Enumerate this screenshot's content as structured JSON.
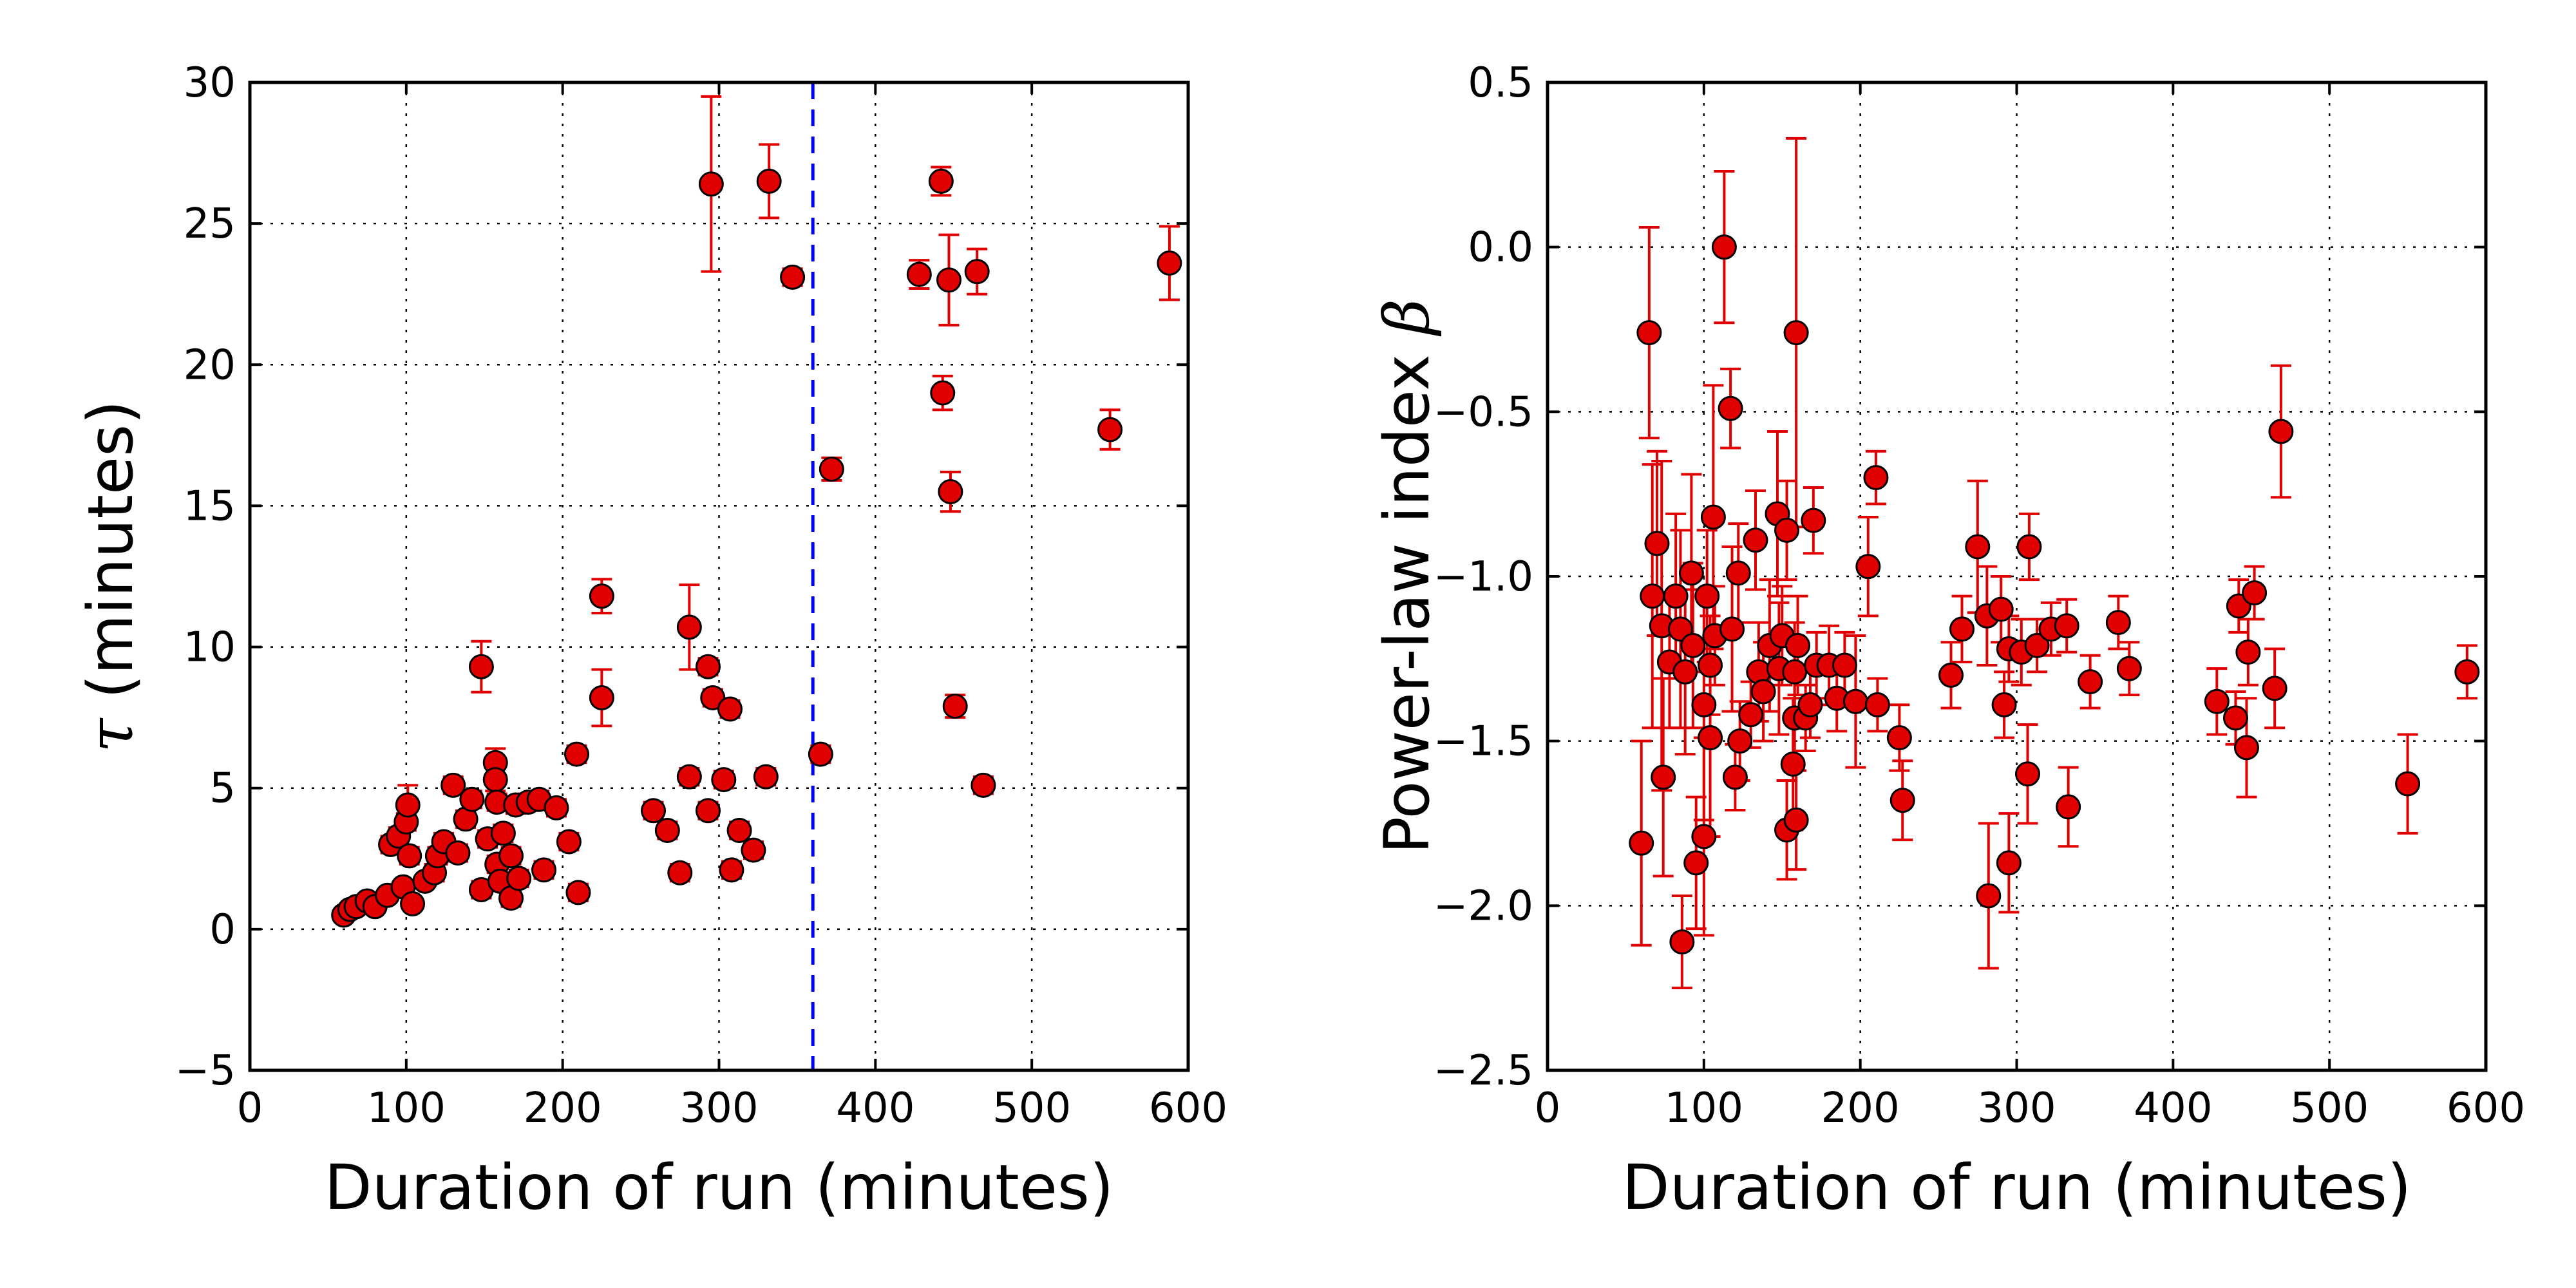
{
  "colors": {
    "marker": "#e00000",
    "errorbar": "#e00000",
    "vline": "#0000ff"
  },
  "chart_data": [
    {
      "type": "scatter",
      "title": "",
      "xlabel": "Duration of run (minutes)",
      "ylabel_symbol": "τ",
      "ylabel": " (minutes)",
      "xlim": [
        0,
        600
      ],
      "ylim": [
        -5,
        30
      ],
      "xticks": [
        0,
        100,
        200,
        300,
        400,
        500,
        600
      ],
      "yticks": [
        -5,
        0,
        5,
        10,
        15,
        20,
        25,
        30
      ],
      "ytick_labels": [
        "−5",
        "0",
        "5",
        "10",
        "15",
        "20",
        "25",
        "30"
      ],
      "grid": true,
      "vline": {
        "x": 360,
        "style": "dashed"
      },
      "points": [
        [
          60,
          0.5,
          0.15
        ],
        [
          64,
          0.7,
          0.2
        ],
        [
          68,
          0.8,
          0.2
        ],
        [
          75,
          1.0,
          0.2
        ],
        [
          80,
          0.8,
          0.2
        ],
        [
          88,
          1.2,
          0.2
        ],
        [
          90,
          3.0,
          0.3
        ],
        [
          95,
          3.3,
          0.3
        ],
        [
          98,
          1.5,
          0.2
        ],
        [
          100,
          3.8,
          0.3
        ],
        [
          101,
          4.4,
          0.7
        ],
        [
          102,
          2.6,
          0.3
        ],
        [
          104,
          0.9,
          0.2
        ],
        [
          112,
          1.7,
          0.2
        ],
        [
          118,
          2.0,
          0.3
        ],
        [
          120,
          2.6,
          0.3
        ],
        [
          124,
          3.1,
          0.3
        ],
        [
          130,
          5.1,
          0.3
        ],
        [
          133,
          2.7,
          0.3
        ],
        [
          138,
          3.9,
          0.3
        ],
        [
          142,
          4.6,
          0.3
        ],
        [
          148,
          9.3,
          0.9
        ],
        [
          148,
          1.4,
          0.3
        ],
        [
          152,
          3.2,
          0.3
        ],
        [
          157,
          5.9,
          0.5
        ],
        [
          157,
          5.3,
          0.4
        ],
        [
          158,
          4.5,
          0.3
        ],
        [
          158,
          2.3,
          0.3
        ],
        [
          160,
          1.7,
          0.3
        ],
        [
          162,
          3.4,
          0.3
        ],
        [
          167,
          2.6,
          0.3
        ],
        [
          167,
          1.1,
          0.3
        ],
        [
          170,
          4.4,
          0.3
        ],
        [
          172,
          1.8,
          0.3
        ],
        [
          178,
          4.5,
          0.3
        ],
        [
          185,
          4.6,
          0.3
        ],
        [
          188,
          2.1,
          0.3
        ],
        [
          196,
          4.3,
          0.3
        ],
        [
          204,
          3.1,
          0.3
        ],
        [
          209,
          6.2,
          0.3
        ],
        [
          210,
          1.3,
          0.3
        ],
        [
          225,
          11.8,
          0.6
        ],
        [
          225,
          8.2,
          1.0
        ],
        [
          258,
          4.2,
          0.3
        ],
        [
          267,
          3.5,
          0.3
        ],
        [
          275,
          2.0,
          0.3
        ],
        [
          281,
          10.7,
          1.5
        ],
        [
          281,
          5.4,
          0.3
        ],
        [
          293,
          9.3,
          0.3
        ],
        [
          293,
          4.2,
          0.3
        ],
        [
          295,
          26.4,
          3.1
        ],
        [
          296,
          8.2,
          0.3
        ],
        [
          303,
          5.3,
          0.3
        ],
        [
          307,
          7.8,
          0.3
        ],
        [
          308,
          2.1,
          0.3
        ],
        [
          313,
          3.5,
          0.3
        ],
        [
          322,
          2.8,
          0.3
        ],
        [
          330,
          5.4,
          0.3
        ],
        [
          332,
          26.5,
          1.3
        ],
        [
          347,
          23.1,
          0.3
        ],
        [
          365,
          6.2,
          0.3
        ],
        [
          372,
          16.3,
          0.4
        ],
        [
          428,
          23.2,
          0.5
        ],
        [
          442,
          26.5,
          0.5
        ],
        [
          443,
          19.0,
          0.6
        ],
        [
          447,
          23.0,
          1.6
        ],
        [
          448,
          15.5,
          0.7
        ],
        [
          451,
          7.9,
          0.4
        ],
        [
          465,
          23.3,
          0.8
        ],
        [
          469,
          5.1,
          0.3
        ],
        [
          550,
          17.7,
          0.7
        ],
        [
          588,
          23.6,
          1.3
        ]
      ]
    },
    {
      "type": "scatter",
      "title": "",
      "xlabel": "Duration of run (minutes)",
      "ylabel": "Power-law index ",
      "ylabel_symbol": "β",
      "xlim": [
        0,
        600
      ],
      "ylim": [
        -2.5,
        0.5
      ],
      "xticks": [
        0,
        100,
        200,
        300,
        400,
        500,
        600
      ],
      "yticks": [
        -2.5,
        -2.0,
        -1.5,
        -1.0,
        -0.5,
        0.0,
        0.5
      ],
      "ytick_labels": [
        "−2.5",
        "−2.0",
        "−1.5",
        "−1.0",
        "−0.5",
        "0.0",
        "0.5"
      ],
      "grid": true,
      "points": [
        [
          60,
          -1.81,
          0.31
        ],
        [
          65,
          -0.26,
          0.32
        ],
        [
          67,
          -1.06,
          0.4
        ],
        [
          70,
          -0.9,
          0.28
        ],
        [
          73,
          -1.15,
          0.5
        ],
        [
          74,
          -1.61,
          0.3
        ],
        [
          78,
          -1.26,
          0.2
        ],
        [
          82,
          -1.06,
          0.25
        ],
        [
          85,
          -1.16,
          0.3
        ],
        [
          86,
          -2.11,
          0.14
        ],
        [
          88,
          -1.29,
          0.25
        ],
        [
          92,
          -0.99,
          0.3
        ],
        [
          93,
          -1.21,
          0.25
        ],
        [
          95,
          -1.87,
          0.2
        ],
        [
          100,
          -1.39,
          0.35
        ],
        [
          100,
          -1.79,
          0.3
        ],
        [
          102,
          -1.06,
          0.2
        ],
        [
          104,
          -1.49,
          0.3
        ],
        [
          104,
          -1.27,
          0.15
        ],
        [
          106,
          -0.82,
          0.4
        ],
        [
          107,
          -1.18,
          0.15
        ],
        [
          113,
          0.0,
          0.23
        ],
        [
          117,
          -0.49,
          0.12
        ],
        [
          118,
          -1.16,
          0.25
        ],
        [
          120,
          -1.61,
          0.1
        ],
        [
          122,
          -0.99,
          0.15
        ],
        [
          123,
          -1.5,
          0.12
        ],
        [
          130,
          -1.42,
          0.1
        ],
        [
          133,
          -0.89,
          0.15
        ],
        [
          135,
          -1.29,
          0.15
        ],
        [
          138,
          -1.35,
          0.15
        ],
        [
          142,
          -1.21,
          0.2
        ],
        [
          147,
          -0.81,
          0.25
        ],
        [
          148,
          -1.28,
          0.2
        ],
        [
          150,
          -1.18,
          0.15
        ],
        [
          153,
          -0.86,
          0.15
        ],
        [
          153,
          -1.77,
          0.15
        ],
        [
          157,
          -1.57,
          0.2
        ],
        [
          158,
          -1.43,
          0.15
        ],
        [
          158,
          -1.29,
          0.15
        ],
        [
          159,
          -0.26,
          0.59
        ],
        [
          159,
          -1.74,
          0.15
        ],
        [
          160,
          -1.21,
          0.15
        ],
        [
          165,
          -1.43,
          0.1
        ],
        [
          168,
          -1.39,
          0.1
        ],
        [
          170,
          -0.83,
          0.1
        ],
        [
          172,
          -1.27,
          0.1
        ],
        [
          180,
          -1.27,
          0.12
        ],
        [
          185,
          -1.37,
          0.1
        ],
        [
          190,
          -1.27,
          0.1
        ],
        [
          197,
          -1.38,
          0.2
        ],
        [
          205,
          -0.97,
          0.15
        ],
        [
          210,
          -0.7,
          0.08
        ],
        [
          211,
          -1.39,
          0.08
        ],
        [
          225,
          -1.49,
          0.1
        ],
        [
          227,
          -1.68,
          0.12
        ],
        [
          258,
          -1.3,
          0.1
        ],
        [
          265,
          -1.16,
          0.1
        ],
        [
          275,
          -0.91,
          0.2
        ],
        [
          281,
          -1.12,
          0.15
        ],
        [
          282,
          -1.97,
          0.22
        ],
        [
          290,
          -1.1,
          0.1
        ],
        [
          292,
          -1.39,
          0.1
        ],
        [
          295,
          -1.87,
          0.15
        ],
        [
          295,
          -1.22,
          0.1
        ],
        [
          303,
          -1.23,
          0.1
        ],
        [
          307,
          -1.6,
          0.15
        ],
        [
          308,
          -0.91,
          0.1
        ],
        [
          313,
          -1.21,
          0.08
        ],
        [
          322,
          -1.16,
          0.08
        ],
        [
          332,
          -1.15,
          0.08
        ],
        [
          333,
          -1.7,
          0.12
        ],
        [
          347,
          -1.32,
          0.08
        ],
        [
          365,
          -1.14,
          0.08
        ],
        [
          372,
          -1.28,
          0.08
        ],
        [
          428,
          -1.38,
          0.1
        ],
        [
          440,
          -1.43,
          0.08
        ],
        [
          442,
          -1.09,
          0.08
        ],
        [
          447,
          -1.52,
          0.15
        ],
        [
          448,
          -1.23,
          0.1
        ],
        [
          452,
          -1.05,
          0.08
        ],
        [
          465,
          -1.34,
          0.12
        ],
        [
          469,
          -0.56,
          0.2
        ],
        [
          550,
          -1.63,
          0.15
        ],
        [
          588,
          -1.29,
          0.08
        ]
      ]
    }
  ]
}
